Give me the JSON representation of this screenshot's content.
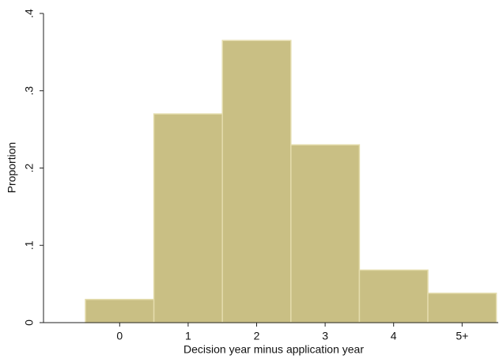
{
  "chart_data": {
    "type": "bar",
    "x_label": "Decision year minus application year",
    "y_label": "Proportion",
    "categories": [
      "0",
      "1",
      "2",
      "3",
      "4",
      "5+"
    ],
    "values": [
      0.03,
      0.27,
      0.365,
      0.23,
      0.068,
      0.038
    ],
    "color": "#c9bf84",
    "edge_color": "#e4dcac",
    "ylim": [
      0,
      0.4
    ],
    "yticks": [
      0,
      {
        "value": 0.1,
        "label": ".1"
      },
      {
        "value": 0.2,
        "label": ".2"
      },
      {
        "value": 0.3,
        "label": ".3"
      },
      {
        "value": 0.4,
        "label": ".4"
      }
    ],
    "grid": false
  }
}
